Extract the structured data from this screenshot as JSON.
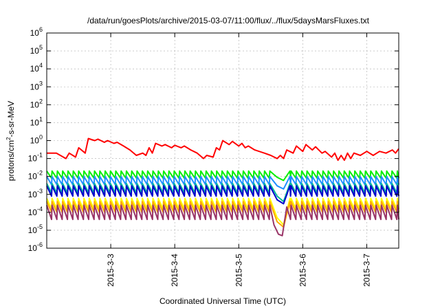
{
  "chart_data": {
    "type": "line",
    "title": "/data/run/goesPlots/archive/2015-03-07/11:00/flux/../flux/5daysMarsFluxes.txt",
    "xlabel": "Coordinated Universal Time (UTC)",
    "ylabel_base": "protons/cm",
    "ylabel_sup": "2",
    "ylabel_tail": "-s-sr-MeV",
    "y_scale": "log",
    "ylim_exp": [
      -6,
      6
    ],
    "xlim_days": [
      2.0,
      7.5
    ],
    "grid": true,
    "x_ticks": [
      {
        "label": "2015-3-3",
        "day": 3
      },
      {
        "label": "2015-3-4",
        "day": 4
      },
      {
        "label": "2015-3-5",
        "day": 5
      },
      {
        "label": "2015-3-6",
        "day": 6
      },
      {
        "label": "2015-3-7",
        "day": 7
      }
    ],
    "y_ticks": [
      {
        "base": "10",
        "exp": "6",
        "e": 6
      },
      {
        "base": "10",
        "exp": "5",
        "e": 5
      },
      {
        "base": "10",
        "exp": "4",
        "e": 4
      },
      {
        "base": "10",
        "exp": "3",
        "e": 3
      },
      {
        "base": "10",
        "exp": "2",
        "e": 2
      },
      {
        "base": "10",
        "exp": "1",
        "e": 1
      },
      {
        "base": "10",
        "exp": "0",
        "e": 0
      },
      {
        "base": "10",
        "exp": "-1",
        "e": -1
      },
      {
        "base": "10",
        "exp": "-2",
        "e": -2
      },
      {
        "base": "10",
        "exp": "-3",
        "e": -3
      },
      {
        "base": "10",
        "exp": "-4",
        "e": -4
      },
      {
        "base": "10",
        "exp": "-5",
        "e": -5
      },
      {
        "base": "10",
        "exp": "-6",
        "e": -6
      }
    ],
    "series": [
      {
        "color": "#ff0000",
        "points": [
          [
            2.0,
            0.2
          ],
          [
            2.15,
            0.2
          ],
          [
            2.3,
            0.1
          ],
          [
            2.35,
            0.2
          ],
          [
            2.45,
            0.12
          ],
          [
            2.5,
            0.4
          ],
          [
            2.6,
            0.2
          ],
          [
            2.65,
            1.3
          ],
          [
            2.75,
            1.0
          ],
          [
            2.8,
            1.2
          ],
          [
            2.9,
            0.8
          ],
          [
            2.95,
            1.0
          ],
          [
            3.05,
            0.7
          ],
          [
            3.1,
            0.8
          ],
          [
            3.2,
            0.5
          ],
          [
            3.3,
            0.3
          ],
          [
            3.4,
            0.15
          ],
          [
            3.5,
            0.2
          ],
          [
            3.55,
            0.15
          ],
          [
            3.6,
            0.4
          ],
          [
            3.65,
            0.2
          ],
          [
            3.7,
            0.7
          ],
          [
            3.8,
            0.5
          ],
          [
            3.85,
            0.6
          ],
          [
            3.95,
            0.4
          ],
          [
            4.0,
            0.55
          ],
          [
            4.1,
            0.4
          ],
          [
            4.15,
            0.5
          ],
          [
            4.25,
            0.3
          ],
          [
            4.35,
            0.2
          ],
          [
            4.45,
            0.1
          ],
          [
            4.5,
            0.15
          ],
          [
            4.6,
            0.12
          ],
          [
            4.65,
            0.4
          ],
          [
            4.7,
            0.3
          ],
          [
            4.75,
            1.0
          ],
          [
            4.85,
            0.6
          ],
          [
            4.9,
            0.9
          ],
          [
            5.0,
            0.5
          ],
          [
            5.05,
            0.7
          ],
          [
            5.1,
            0.4
          ],
          [
            5.15,
            0.5
          ],
          [
            5.25,
            0.3
          ],
          [
            5.4,
            0.2
          ],
          [
            5.5,
            0.15
          ],
          [
            5.6,
            0.1
          ],
          [
            5.65,
            0.15
          ],
          [
            5.7,
            0.1
          ],
          [
            5.75,
            0.3
          ],
          [
            5.85,
            0.2
          ],
          [
            5.9,
            0.5
          ],
          [
            6.0,
            0.25
          ],
          [
            6.05,
            0.6
          ],
          [
            6.15,
            0.3
          ],
          [
            6.2,
            0.45
          ],
          [
            6.3,
            0.2
          ],
          [
            6.35,
            0.25
          ],
          [
            6.45,
            0.12
          ],
          [
            6.5,
            0.2
          ],
          [
            6.55,
            0.08
          ],
          [
            6.6,
            0.15
          ],
          [
            6.65,
            0.08
          ],
          [
            6.7,
            0.2
          ],
          [
            6.75,
            0.1
          ],
          [
            6.8,
            0.2
          ],
          [
            6.9,
            0.15
          ],
          [
            7.0,
            0.25
          ],
          [
            7.1,
            0.15
          ],
          [
            7.2,
            0.25
          ],
          [
            7.3,
            0.2
          ],
          [
            7.4,
            0.3
          ],
          [
            7.45,
            0.2
          ],
          [
            7.5,
            0.35
          ]
        ]
      },
      {
        "color": "#00ee00",
        "base": 0.02,
        "dip": 0.008,
        "period": 0.083,
        "phase": 0.0,
        "event": [
          [
            5.6,
            0.009
          ],
          [
            5.7,
            0.006
          ],
          [
            5.8,
            0.02
          ]
        ]
      },
      {
        "color": "#1e90ff",
        "base": 0.01,
        "dip": 0.0035,
        "period": 0.083,
        "phase": 0.0,
        "event": [
          [
            5.6,
            0.003
          ],
          [
            5.7,
            0.002
          ],
          [
            5.8,
            0.01
          ]
        ]
      },
      {
        "color": "#00bb99",
        "base": 0.004,
        "dip": 0.0012,
        "period": 0.083,
        "phase": 0.0,
        "event": [
          [
            5.6,
            0.0008
          ],
          [
            5.7,
            0.0004
          ],
          [
            5.8,
            0.004
          ]
        ]
      },
      {
        "color": "#0000cc",
        "base": 0.003,
        "dip": 0.0008,
        "period": 0.083,
        "phase": 0.0,
        "event": [
          [
            5.6,
            0.0005
          ],
          [
            5.7,
            0.0003
          ],
          [
            5.8,
            0.003
          ]
        ]
      },
      {
        "color": "#ffff00",
        "base": 0.0006,
        "dip": 0.00015,
        "period": 0.083,
        "phase": 0.0,
        "event": [
          [
            5.6,
            5e-05
          ],
          [
            5.7,
            2e-05
          ],
          [
            5.8,
            0.0006
          ]
        ]
      },
      {
        "color": "#ffaa00",
        "base": 0.0004,
        "dip": 0.0001,
        "period": 0.083,
        "phase": 0.0,
        "event": [
          [
            5.6,
            3e-05
          ],
          [
            5.7,
            1.5e-05
          ],
          [
            5.8,
            0.0004
          ]
        ]
      },
      {
        "color": "#993366",
        "base": 0.00025,
        "dip": 4e-05,
        "period": 0.083,
        "phase": 0.0,
        "event": [
          [
            5.55,
            2e-05
          ],
          [
            5.62,
            6e-06
          ],
          [
            5.68,
            5e-06
          ],
          [
            5.75,
            0.0002
          ]
        ]
      }
    ]
  }
}
